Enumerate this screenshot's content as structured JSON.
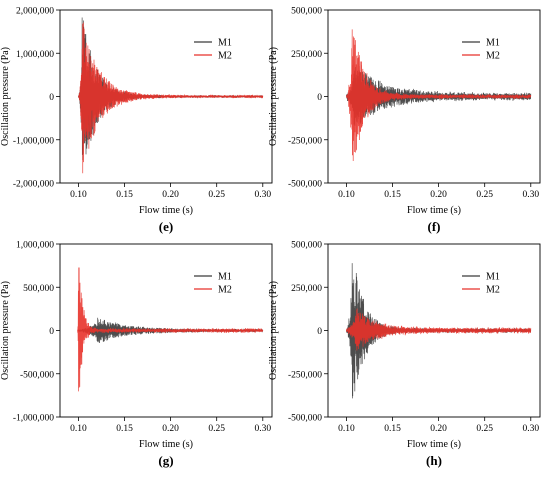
{
  "chart_data": [
    {
      "panel": "(e)",
      "type": "line",
      "xlabel": "Flow time (s)",
      "ylabel": "Oscillation pressure (Pa)",
      "xlim": [
        0.08,
        0.31
      ],
      "ylim": [
        -2000000,
        2000000
      ],
      "xticks": [
        "0.10",
        "0.15",
        "0.20",
        "0.25",
        "0.30"
      ],
      "xtick_values": [
        0.1,
        0.15,
        0.2,
        0.25,
        0.3
      ],
      "yticks": [
        "-2,000,000",
        "-1,000,000",
        "0",
        "1,000,000",
        "2,000,000"
      ],
      "ytick_values": [
        -2000000,
        -1000000,
        0,
        1000000,
        2000000
      ],
      "legend_position": "top-right",
      "series": [
        {
          "name": "M1",
          "color": "#3a3a3a",
          "start": 0.1,
          "end": 0.3,
          "peak_time": 0.104,
          "peak_amp": 1900000,
          "decay": 0.015,
          "floor": 35000
        },
        {
          "name": "M2",
          "color": "#e8322a",
          "start": 0.1,
          "end": 0.3,
          "peak_time": 0.104,
          "peak_amp": 1850000,
          "decay": 0.017,
          "floor": 45000
        }
      ]
    },
    {
      "panel": "(f)",
      "type": "line",
      "xlabel": "Flow time (s)",
      "ylabel": "Oscillation pressure (Pa)",
      "xlim": [
        0.08,
        0.31
      ],
      "ylim": [
        -500000,
        500000
      ],
      "xticks": [
        "0.10",
        "0.15",
        "0.20",
        "0.25",
        "0.30"
      ],
      "xtick_values": [
        0.1,
        0.15,
        0.2,
        0.25,
        0.3
      ],
      "yticks": [
        "-500,000",
        "-250,000",
        "0",
        "250,000",
        "500,000"
      ],
      "ytick_values": [
        -500000,
        -250000,
        0,
        250000,
        500000
      ],
      "legend_position": "top-right",
      "series": [
        {
          "name": "M1",
          "color": "#3a3a3a",
          "start": 0.1,
          "end": 0.3,
          "peak_time": 0.108,
          "peak_amp": 180000,
          "decay": 0.03,
          "floor": 25000
        },
        {
          "name": "M2",
          "color": "#e8322a",
          "start": 0.1,
          "end": 0.3,
          "peak_time": 0.106,
          "peak_amp": 490000,
          "decay": 0.012,
          "floor": 15000
        }
      ]
    },
    {
      "panel": "(g)",
      "type": "line",
      "xlabel": "Flow time (s)",
      "ylabel": "Oscillation pressure (Pa)",
      "xlim": [
        0.08,
        0.31
      ],
      "ylim": [
        -1000000,
        1000000
      ],
      "xticks": [
        "0.10",
        "0.15",
        "0.20",
        "0.25",
        "0.30"
      ],
      "xtick_values": [
        0.1,
        0.15,
        0.2,
        0.25,
        0.3
      ],
      "yticks": [
        "-1,000,000",
        "-500,000",
        "0",
        "500,000",
        "1,000,000"
      ],
      "ytick_values": [
        -1000000,
        -500000,
        0,
        500000,
        1000000
      ],
      "legend_position": "top-right",
      "series": [
        {
          "name": "M1",
          "color": "#3a3a3a",
          "start": 0.1,
          "end": 0.3,
          "peak_time": 0.12,
          "peak_amp": 150000,
          "decay": 0.03,
          "floor": 20000
        },
        {
          "name": "M2",
          "color": "#e8322a",
          "start": 0.099,
          "end": 0.3,
          "peak_time": 0.1,
          "peak_amp": 980000,
          "decay": 0.004,
          "floor": 30000
        }
      ]
    },
    {
      "panel": "(h)",
      "type": "line",
      "xlabel": "Flow time (s)",
      "ylabel": "Oscillation pressure (Pa)",
      "xlim": [
        0.08,
        0.31
      ],
      "ylim": [
        -500000,
        500000
      ],
      "xticks": [
        "0.10",
        "0.15",
        "0.20",
        "0.25",
        "0.30"
      ],
      "xtick_values": [
        0.1,
        0.15,
        0.2,
        0.25,
        0.3
      ],
      "yticks": [
        "-500,000",
        "-250,000",
        "0",
        "250,000",
        "500,000"
      ],
      "ytick_values": [
        -500000,
        -250000,
        0,
        250000,
        500000
      ],
      "legend_position": "top-right",
      "series": [
        {
          "name": "M1",
          "color": "#3a3a3a",
          "start": 0.1,
          "end": 0.3,
          "peak_time": 0.106,
          "peak_amp": 490000,
          "decay": 0.012,
          "floor": 15000
        },
        {
          "name": "M2",
          "color": "#e8322a",
          "start": 0.1,
          "end": 0.3,
          "peak_time": 0.11,
          "peak_amp": 120000,
          "decay": 0.02,
          "floor": 20000
        }
      ]
    }
  ]
}
